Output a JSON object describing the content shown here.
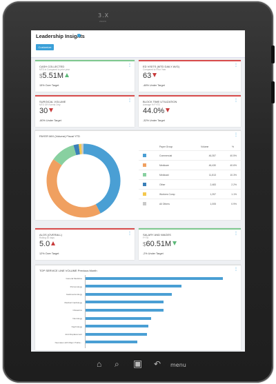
{
  "device": {
    "camera_label": "3.X",
    "camera_sub": "zoom",
    "menu_label": "menu"
  },
  "header": {
    "title": "Leadership Insights",
    "customize_label": "Customize"
  },
  "colors": {
    "accent": "#3aa0d8",
    "good": "#7dc88e",
    "bad": "#d84a4a",
    "bar": "#4a9fd4"
  },
  "kpis": [
    {
      "title": "CASH COLLECTED",
      "subtitle": "MTD in Compared to prior year",
      "currency": "$",
      "value": "5.51M",
      "trend": "up-good",
      "note": "15% Over Target",
      "status": "good"
    },
    {
      "title": "ED VISITS (MTD DAILY AVG)",
      "subtitle": "Compared to Prior Year",
      "currency": "",
      "value": "63",
      "trend": "down-bad",
      "note": "-48% Under Target",
      "status": "bad"
    },
    {
      "title": "SURGICAL VOLUME",
      "subtitle": "MTD OR Events Only",
      "currency": "",
      "value": "30",
      "trend": "down-bad",
      "note": "-80% Under Target",
      "status": "bad"
    },
    {
      "title": "BLOCK TIME UTILIZATION",
      "subtitle": "Average % FYTD",
      "currency": "",
      "value": "44.0%",
      "trend": "down-bad",
      "note": "-32% Under Target",
      "status": "bad"
    },
    {
      "title": "ALOS (OVERALL)",
      "subtitle": "Rolling 30 days",
      "currency": "",
      "value": "5.0",
      "trend": "up-bad",
      "note": "12% Over Target",
      "status": "bad"
    },
    {
      "title": "SALARY AND WAGES",
      "subtitle": "FYTD",
      "currency": "$",
      "value": "60.51M",
      "trend": "down-good",
      "note": "-2% Under Target",
      "status": "good"
    }
  ],
  "payer_mix": {
    "title": "PAYER MIX (Volume) Fiscal YTD",
    "columns": [
      "Payer Group",
      "Volume",
      "%"
    ],
    "rows": [
      {
        "name": "Commercial",
        "volume": "46,357",
        "pct": "40.5%",
        "color": "#4a9fd4"
      },
      {
        "name": "Medicare",
        "volume": "46,430",
        "pct": "40.6%",
        "color": "#f0a060"
      },
      {
        "name": "Medicaid",
        "volume": "11,813",
        "pct": "10.3%",
        "color": "#88d0a0"
      },
      {
        "name": "Other",
        "volume": "2,483",
        "pct": "2.2%",
        "color": "#3a7fb8"
      },
      {
        "name": "Workers Comp",
        "volume": "1,257",
        "pct": "1.1%",
        "color": "#f4c84e"
      },
      {
        "name": "All Others",
        "volume": "1,005",
        "pct": "0.9%",
        "color": "#c9c9c9"
      }
    ]
  },
  "chart_data": {
    "type": "bar",
    "title": "TOP SERVICE LINE VOLUME Previous Month",
    "orientation": "horizontal",
    "categories": [
      "General Medicine",
      "Pulmonology",
      "Gastroenterology",
      "Medical Cardiology",
      "Obstetrics",
      "Neurology",
      "Nephrology",
      "Joint Replacement",
      "Neonates with Major Proble..."
    ],
    "values": [
      100,
      70,
      63,
      57,
      57,
      48,
      46,
      45,
      38
    ]
  }
}
